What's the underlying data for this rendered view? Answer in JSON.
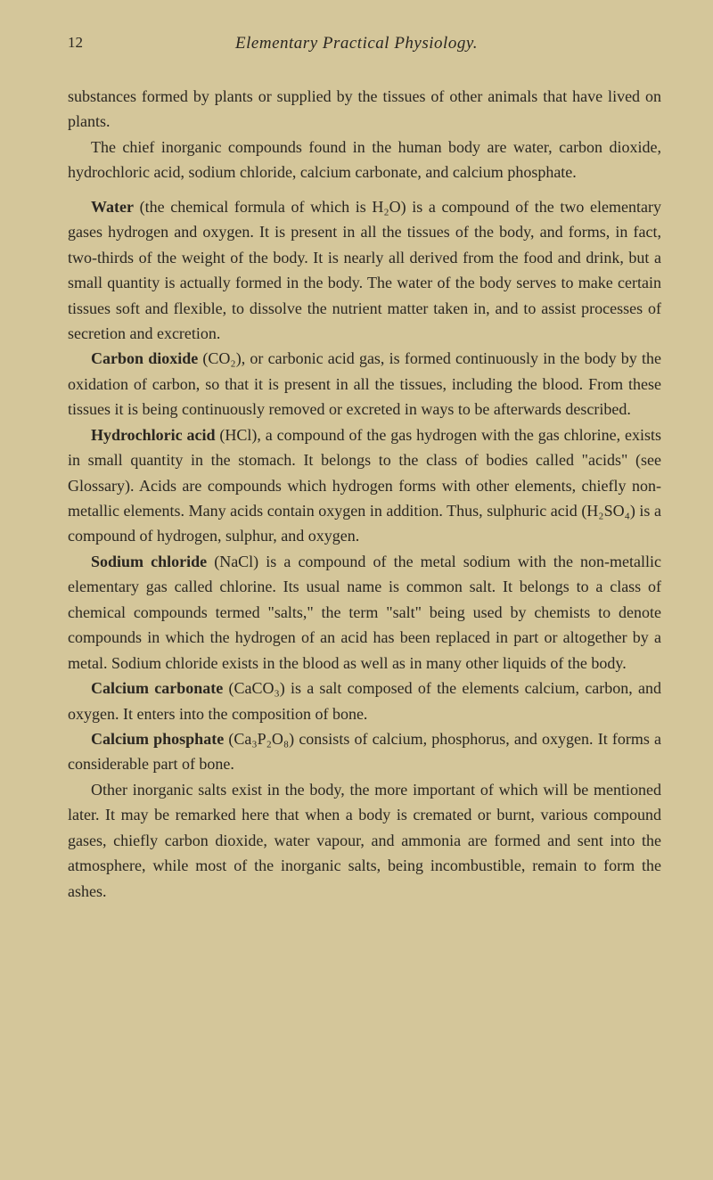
{
  "page": {
    "number": "12",
    "running_header": "Elementary Practical Physiology."
  },
  "paragraphs": {
    "p1": "substances formed by plants or supplied by the tissues of other animals that have lived on plants.",
    "p2": "The chief inorganic compounds found in the human body are water, carbon dioxide, hydrochloric acid, sodium chloride, calcium carbonate, and calcium phosphate.",
    "water_label": "Water",
    "water_text": " (the chemical formula of which is H₂O) is a compound of the two elementary gases hydrogen and oxygen. It is present in all the tissues of the body, and forms, in fact, two-thirds of the weight of the body. It is nearly all derived from the food and drink, but a small quantity is actually formed in the body. The water of the body serves to make certain tissues soft and flexible, to dissolve the nutrient matter taken in, and to assist processes of secretion and excretion.",
    "carbon_label": "Carbon dioxide",
    "carbon_text": " (CO₂), or carbonic acid gas, is formed continuously in the body by the oxidation of carbon, so that it is present in all the tissues, including the blood. From these tissues it is being continuously removed or excreted in ways to be afterwards described.",
    "hydro_label": "Hydrochloric acid",
    "hydro_text": " (HCl), a compound of the gas hydrogen with the gas chlorine, exists in small quantity in the stomach. It belongs to the class of bodies called \"acids\" (see Glossary). Acids are compounds which hydrogen forms with other elements, chiefly non-metallic elements. Many acids contain oxygen in addition. Thus, sulphuric acid (H₂SO₄) is a compound of hydrogen, sulphur, and oxygen.",
    "sodium_label": "Sodium chloride",
    "sodium_text": " (NaCl) is a compound of the metal sodium with the non-metallic elementary gas called chlorine. Its usual name is common salt. It belongs to a class of chemical compounds termed \"salts,\" the term \"salt\" being used by chemists to denote compounds in which the hydrogen of an acid has been replaced in part or altogether by a metal. Sodium chloride exists in the blood as well as in many other liquids of the body.",
    "calcarb_label": "Calcium carbonate",
    "calcarb_text": " (CaCO₃) is a salt composed of the elements calcium, carbon, and oxygen. It enters into the composition of bone.",
    "calphos_label": "Calcium phosphate",
    "calphos_text": " (Ca₃P₂O₈) consists of calcium, phosphorus, and oxygen. It forms a considerable part of bone.",
    "other": "Other inorganic salts exist in the body, the more important of which will be mentioned later. It may be remarked here that when a body is cremated or burnt, various compound gases, chiefly carbon dioxide, water vapour, and ammonia are formed and sent into the atmosphere, while most of the inorganic salts, being incombustible, remain to form the ashes."
  },
  "styling": {
    "background_color": "#d4c69a",
    "text_color": "#2a2620",
    "body_fontsize": 18,
    "header_fontsize": 19,
    "line_height": 1.58
  }
}
